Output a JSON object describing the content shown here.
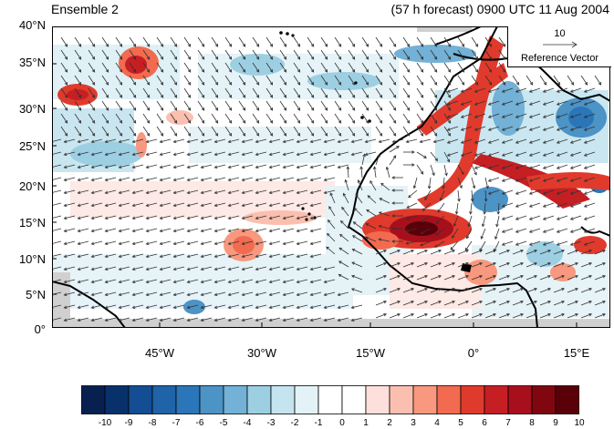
{
  "title_left": "Ensemble 2",
  "title_right": "(57 h forecast) 0900 UTC 11 Aug 2004",
  "y_axis_ticks": [
    "40°N",
    "35°N",
    "30°N",
    "25°N",
    "20°N",
    "15°N",
    "10°N",
    "5°N",
    "0°"
  ],
  "x_axis_ticks": [
    "45°W",
    "30°W",
    "15°W",
    "0°",
    "15°E"
  ],
  "reference_vector": {
    "magnitude": "10",
    "title": "Reference Vector"
  },
  "colorbar": {
    "labels": [
      "-10",
      "-9",
      "-8",
      "-7",
      "-6",
      "-5",
      "-4",
      "-3",
      "-2",
      "-1",
      "0",
      "1",
      "2",
      "3",
      "4",
      "5",
      "6",
      "7",
      "8",
      "9",
      "10"
    ],
    "colors": [
      "#08204f",
      "#08306b",
      "#134d94",
      "#1f63a8",
      "#2b76b8",
      "#4c93c6",
      "#73b1d6",
      "#9dcfe3",
      "#c4e4ef",
      "#e3f2f7",
      "#ffffff",
      "#ffffff",
      "#fde0dc",
      "#fbbfb0",
      "#f7987f",
      "#f26a4f",
      "#e03a2c",
      "#c51f24",
      "#a80f1c",
      "#800610",
      "#590008"
    ]
  },
  "map": {
    "lat_range": [
      0,
      40
    ],
    "lon_range": [
      -58,
      20
    ],
    "colors": {
      "land": "#d0d0d0",
      "coastline": "#000000",
      "arrow": "#333333"
    }
  }
}
